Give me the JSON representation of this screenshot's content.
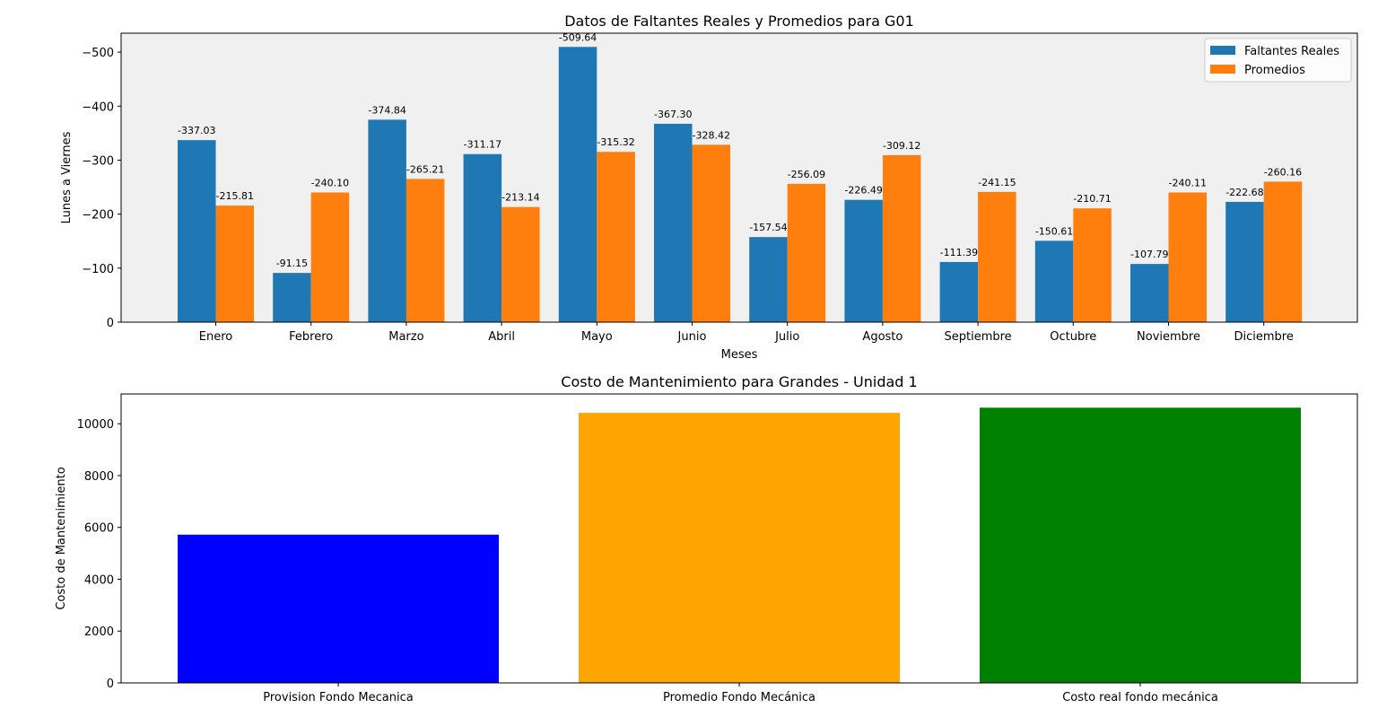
{
  "chart_data": [
    {
      "type": "bar",
      "title": "Datos de Faltantes Reales y Promedios para G01",
      "xlabel": "Meses",
      "ylabel": "Lunes a Viernes",
      "categories": [
        "Enero",
        "Febrero",
        "Marzo",
        "Abril",
        "Mayo",
        "Junio",
        "Julio",
        "Agosto",
        "Septiembre",
        "Octubre",
        "Noviembre",
        "Diciembre"
      ],
      "series": [
        {
          "name": "Faltantes Reales",
          "color": "#1f77b4",
          "values": [
            -337.03,
            -91.15,
            -374.84,
            -311.17,
            -509.64,
            -367.3,
            -157.54,
            -226.49,
            -111.39,
            -150.61,
            -107.79,
            -222.68
          ],
          "labels": [
            "-337.03",
            "-91.15",
            "-374.84",
            "-311.17",
            "-509.64",
            "-367.30",
            "-157.54",
            "-226.49",
            "-111.39",
            "-150.61",
            "-107.79",
            "-222.68"
          ]
        },
        {
          "name": "Promedios",
          "color": "#ff7f0e",
          "values": [
            -215.81,
            -240.1,
            -265.21,
            -213.14,
            -315.32,
            -328.42,
            -256.09,
            -309.12,
            -241.15,
            -210.71,
            -240.11,
            -260.16
          ],
          "labels": [
            "-215.81",
            "-240.10",
            "-265.21",
            "-213.14",
            "-315.32",
            "-328.42",
            "-256.09",
            "-309.12",
            "-241.15",
            "-210.71",
            "-240.11",
            "-260.16"
          ]
        }
      ],
      "ylim": [
        0,
        -535
      ],
      "y_inverted": true,
      "yticks": [
        0,
        -100,
        -200,
        -300,
        -400,
        -500
      ],
      "ytick_labels": [
        "0",
        "−100",
        "−200",
        "−300",
        "−400",
        "−500"
      ],
      "legend": "top-right",
      "grid": false,
      "background": "#f0f0f0"
    },
    {
      "type": "bar",
      "title": "Costo de Mantenimiento para Grandes - Unidad 1",
      "xlabel": "",
      "ylabel": "Costo de Mantenimiento",
      "categories": [
        "Provision Fondo Mecanica",
        "Promedio Fondo Mecánica",
        "Costo real fondo mecánica"
      ],
      "values": [
        5720,
        10420,
        10620
      ],
      "colors": [
        "#0000ff",
        "#ffa500",
        "#008000"
      ],
      "ylim": [
        0,
        11150
      ],
      "yticks": [
        0,
        2000,
        4000,
        6000,
        8000,
        10000
      ],
      "ytick_labels": [
        "0",
        "2000",
        "4000",
        "6000",
        "8000",
        "10000"
      ],
      "grid": false,
      "background": "#ffffff"
    }
  ]
}
